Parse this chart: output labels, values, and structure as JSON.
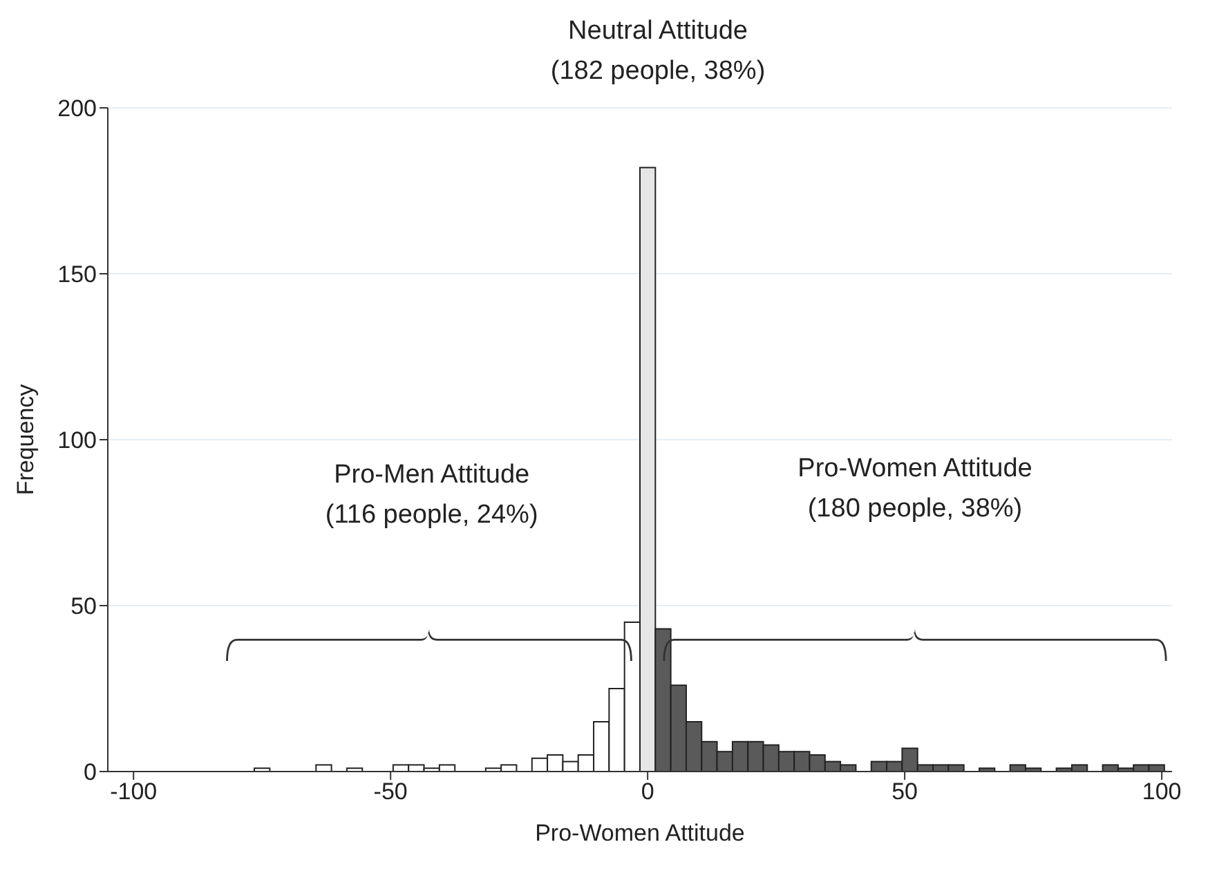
{
  "chart_data": {
    "type": "histogram",
    "xlabel": "Pro-Women Attitude",
    "ylabel": "Frequency",
    "bins": [
      -76.5,
      -73.5,
      -70.5,
      -67.5,
      -64.5,
      -61.5,
      -58.5,
      -55.5,
      -52.5,
      -49.5,
      -46.5,
      -43.5,
      -40.5,
      -37.5,
      -34.5,
      -31.5,
      -28.5,
      -25.5,
      -22.5,
      -19.5,
      -16.5,
      -13.5,
      -10.5,
      -7.5,
      -4.5,
      -1.5,
      1.5,
      4.5,
      7.5,
      10.5,
      13.5,
      16.5,
      19.5,
      22.5,
      25.5,
      28.5,
      31.5,
      34.5,
      37.5,
      40.5,
      43.5,
      46.5,
      49.5,
      52.5,
      55.5,
      58.5,
      61.5,
      64.5,
      67.5,
      70.5,
      73.5,
      76.5,
      79.5,
      82.5,
      85.5,
      88.5,
      91.5,
      94.5,
      97.5,
      100.5
    ],
    "values": [
      1,
      0,
      0,
      0,
      2,
      0,
      1,
      0,
      0,
      2,
      2,
      1,
      2,
      0,
      0,
      1,
      2,
      0,
      4,
      5,
      3,
      5,
      15,
      25,
      45,
      182,
      43,
      26,
      15,
      9,
      6,
      9,
      9,
      8,
      6,
      6,
      5,
      3,
      2,
      0,
      3,
      3,
      7,
      2,
      2,
      2,
      0,
      1,
      0,
      2,
      1,
      0,
      1,
      2,
      0,
      2,
      1,
      2,
      2
    ],
    "colors": [
      "#ffffff",
      "#ffffff",
      "#ffffff",
      "#ffffff",
      "#ffffff",
      "#ffffff",
      "#ffffff",
      "#ffffff",
      "#ffffff",
      "#ffffff",
      "#ffffff",
      "#ffffff",
      "#ffffff",
      "#ffffff",
      "#ffffff",
      "#ffffff",
      "#ffffff",
      "#ffffff",
      "#ffffff",
      "#ffffff",
      "#ffffff",
      "#ffffff",
      "#ffffff",
      "#ffffff",
      "#ffffff",
      "#e6e6e6",
      "#5a5a5a",
      "#5a5a5a",
      "#5a5a5a",
      "#5a5a5a",
      "#5a5a5a",
      "#5a5a5a",
      "#5a5a5a",
      "#5a5a5a",
      "#5a5a5a",
      "#5a5a5a",
      "#5a5a5a",
      "#5a5a5a",
      "#5a5a5a",
      "#5a5a5a",
      "#5a5a5a",
      "#5a5a5a",
      "#5a5a5a",
      "#5a5a5a",
      "#5a5a5a",
      "#5a5a5a",
      "#5a5a5a",
      "#5a5a5a",
      "#5a5a5a",
      "#5a5a5a",
      "#5a5a5a",
      "#5a5a5a",
      "#5a5a5a",
      "#5a5a5a",
      "#5a5a5a",
      "#5a5a5a",
      "#5a5a5a",
      "#5a5a5a",
      "#5a5a5a"
    ],
    "xlim": [
      -105,
      102
    ],
    "xticks": [
      -100,
      -50,
      0,
      50,
      100
    ],
    "ylim": [
      0,
      200
    ],
    "yticks": [
      0,
      50,
      100,
      150,
      200
    ],
    "grid": "y",
    "annotations": [
      "Neutral Attitude\n(182 people, 38%)",
      "Pro-Men Attitude\n(116 people, 24%)",
      "Pro-Women Attitude\n(180 people, 38%)"
    ]
  }
}
